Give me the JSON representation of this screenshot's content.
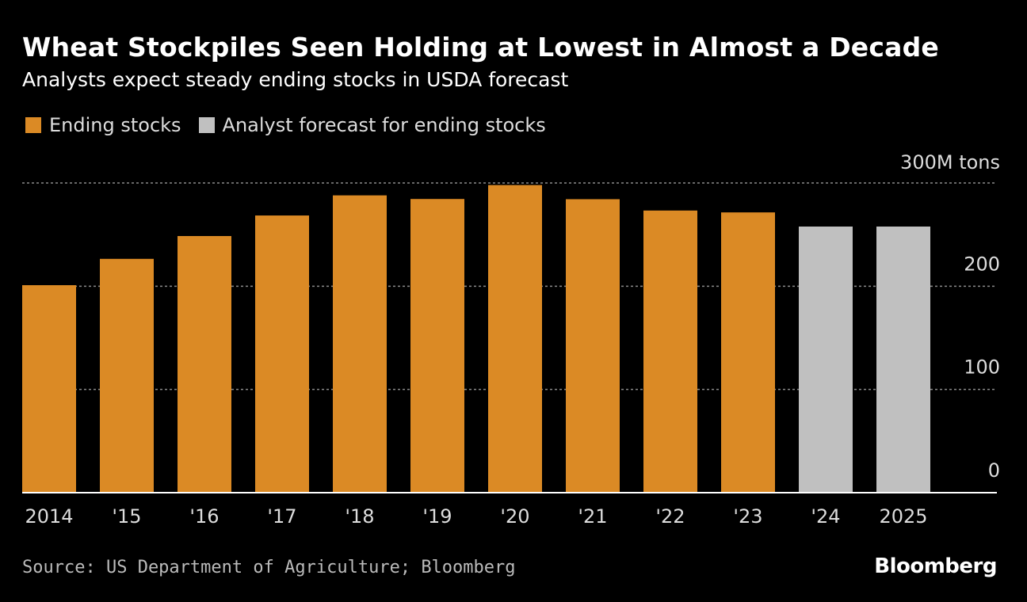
{
  "chart_data": {
    "type": "bar",
    "title": "Wheat Stockpiles Seen Holding at Lowest in Almost a Decade",
    "subtitle": "Analysts expect steady ending stocks in USDA forecast",
    "legend": [
      {
        "name": "Ending stocks",
        "color": "#db8a25"
      },
      {
        "name": "Analyst forecast for ending stocks",
        "color": "#c0c0c0"
      }
    ],
    "legend_placement": "top-left",
    "categories": [
      "2014",
      "'15",
      "'16",
      "'17",
      "'18",
      "'19",
      "'20",
      "'21",
      "'22",
      "'23",
      "'24",
      "2025"
    ],
    "values": [
      201,
      226.5,
      248.6,
      268.5,
      288,
      284.5,
      298,
      284.3,
      273.3,
      271.5,
      257.8,
      257.8
    ],
    "series_index": [
      0,
      0,
      0,
      0,
      0,
      0,
      0,
      0,
      0,
      0,
      1,
      1
    ],
    "ylim": [
      0,
      300
    ],
    "yticks": [
      0,
      100,
      200,
      300
    ],
    "ytick_labels": [
      "0",
      "100",
      "200",
      "300M tons"
    ],
    "ylabel": "",
    "xlabel": "",
    "grid": true,
    "source": "Source: US Department of Agriculture; Bloomberg",
    "brand": "Bloomberg"
  }
}
